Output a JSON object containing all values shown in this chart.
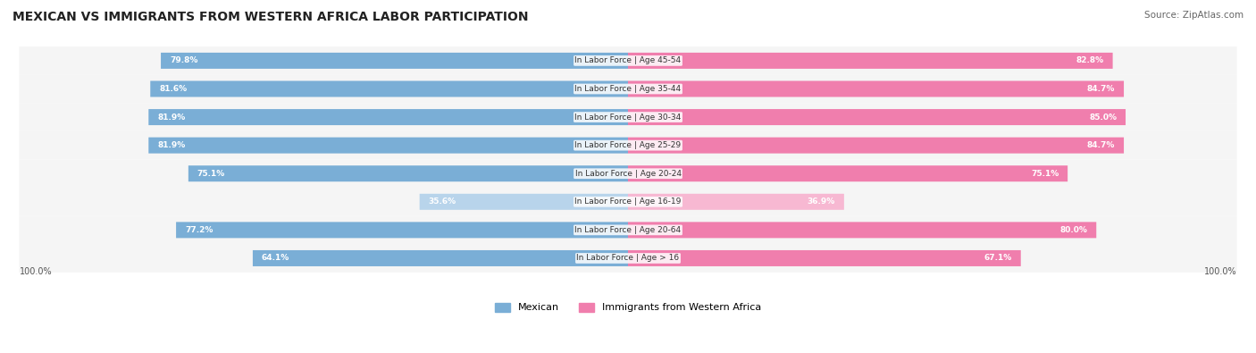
{
  "title": "MEXICAN VS IMMIGRANTS FROM WESTERN AFRICA LABOR PARTICIPATION",
  "source": "Source: ZipAtlas.com",
  "categories": [
    "In Labor Force | Age > 16",
    "In Labor Force | Age 20-64",
    "In Labor Force | Age 16-19",
    "In Labor Force | Age 20-24",
    "In Labor Force | Age 25-29",
    "In Labor Force | Age 30-34",
    "In Labor Force | Age 35-44",
    "In Labor Force | Age 45-54"
  ],
  "mexican_values": [
    64.1,
    77.2,
    35.6,
    75.1,
    81.9,
    81.9,
    81.6,
    79.8
  ],
  "immigrant_values": [
    67.1,
    80.0,
    36.9,
    75.1,
    84.7,
    85.0,
    84.7,
    82.8
  ],
  "mexican_color": "#7aaed6",
  "immigrant_color": "#f07ead",
  "mexican_color_light": "#b8d4eb",
  "immigrant_color_light": "#f7b8d2",
  "bar_bg_color": "#f0f0f0",
  "row_bg_color": "#f5f5f5",
  "label_color": "#555555",
  "max_value": 100.0,
  "legend_mexican": "Mexican",
  "legend_immigrant": "Immigrants from Western Africa",
  "figsize": [
    14.06,
    3.95
  ],
  "dpi": 100
}
